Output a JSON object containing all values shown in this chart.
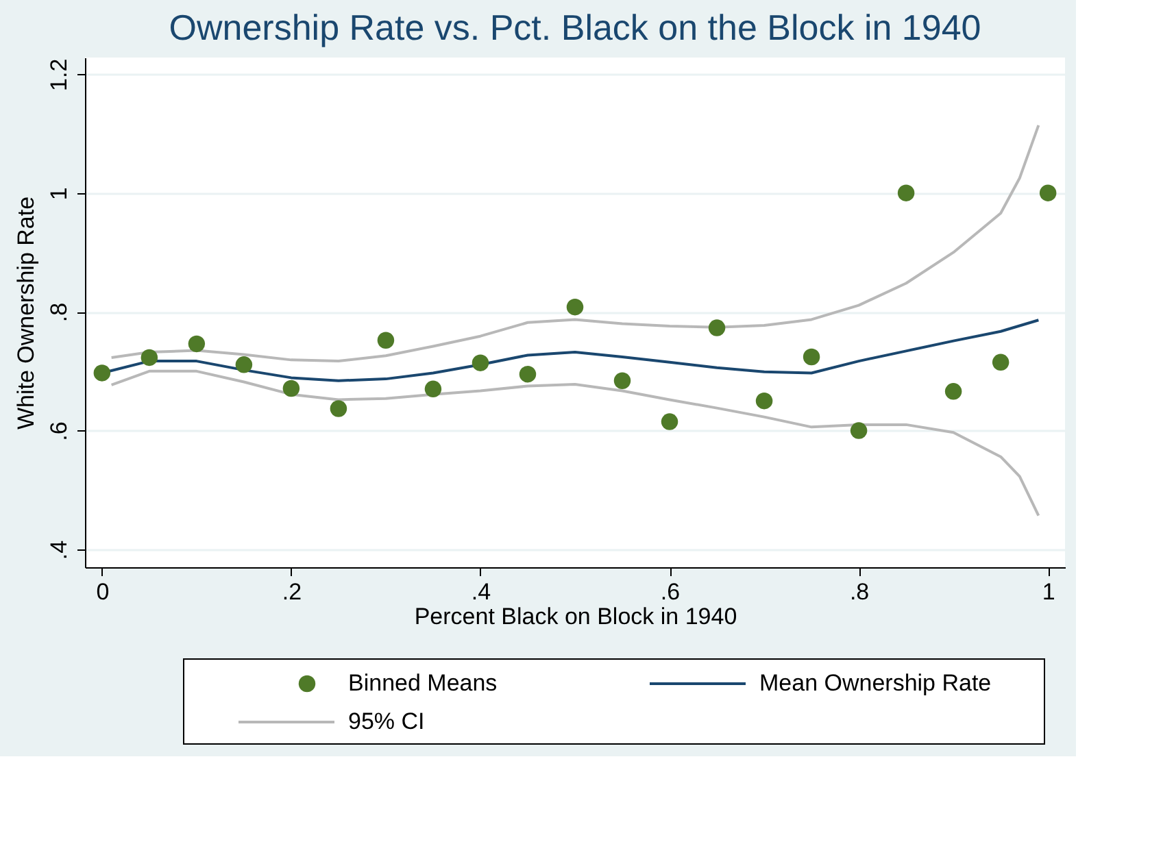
{
  "chart_data": {
    "type": "scatter",
    "title": "Ownership Rate vs. Pct. Black on the Block in 1940",
    "xlabel": "Percent Black on Block in 1940",
    "ylabel": "White Ownership Rate",
    "xlim": [
      -0.018,
      1.018
    ],
    "ylim": [
      0.37,
      1.228
    ],
    "xticks": [
      0,
      {
        "value": 0.2,
        "label": ".2"
      },
      {
        "value": 0.4,
        "label": ".4"
      },
      {
        "value": 0.6,
        "label": ".6"
      },
      {
        "value": 0.8,
        "label": ".8"
      },
      1
    ],
    "yticks": [
      {
        "value": 0.4,
        "label": ".4"
      },
      {
        "value": 0.6,
        "label": ".6"
      },
      {
        "value": 0.8,
        "label": ".8"
      },
      1,
      {
        "value": 1.2,
        "label": "1.2"
      }
    ],
    "grid": "y",
    "legend": "bottom",
    "series": [
      {
        "name": "Binned Means",
        "marker": "circle",
        "color": "#4f7a28",
        "x": [
          0,
          0.05,
          0.1,
          0.15,
          0.2,
          0.25,
          0.3,
          0.35,
          0.4,
          0.45,
          0.5,
          0.55,
          0.6,
          0.65,
          0.7,
          0.75,
          0.8,
          0.85,
          0.9,
          0.95,
          1
        ],
        "values": [
          0.697,
          0.723,
          0.746,
          0.711,
          0.671,
          0.637,
          0.752,
          0.67,
          0.714,
          0.695,
          0.808,
          0.684,
          0.615,
          0.773,
          0.65,
          0.724,
          0.6,
          1.0,
          0.666,
          0.715,
          1.0
        ]
      },
      {
        "name": "Mean Ownership Rate",
        "type": "line",
        "color": "#1a476f",
        "x": [
          0,
          0.05,
          0.1,
          0.15,
          0.2,
          0.25,
          0.3,
          0.35,
          0.4,
          0.45,
          0.5,
          0.55,
          0.6,
          0.65,
          0.7,
          0.75,
          0.8,
          0.85,
          0.9,
          0.95,
          0.99
        ],
        "values": [
          0.697,
          0.717,
          0.717,
          0.702,
          0.689,
          0.684,
          0.687,
          0.697,
          0.711,
          0.727,
          0.732,
          0.724,
          0.715,
          0.706,
          0.699,
          0.697,
          0.717,
          0.734,
          0.751,
          0.767,
          0.786
        ]
      },
      {
        "name": "95% CI",
        "type": "line",
        "color": "#b8b8b8",
        "x": [
          0.01,
          0.05,
          0.1,
          0.15,
          0.2,
          0.25,
          0.3,
          0.35,
          0.4,
          0.45,
          0.5,
          0.55,
          0.6,
          0.65,
          0.7,
          0.75,
          0.8,
          0.85,
          0.9,
          0.95,
          0.97,
          0.99
        ],
        "values": [
          0.723,
          0.732,
          0.735,
          0.728,
          0.719,
          0.717,
          0.726,
          0.742,
          0.759,
          0.782,
          0.787,
          0.78,
          0.776,
          0.774,
          0.777,
          0.787,
          0.811,
          0.848,
          0.9,
          0.966,
          1.025,
          1.114
        ]
      },
      {
        "type": "line",
        "color": "#b8b8b8",
        "x": [
          0.01,
          0.05,
          0.1,
          0.15,
          0.2,
          0.25,
          0.3,
          0.35,
          0.4,
          0.45,
          0.5,
          0.55,
          0.6,
          0.65,
          0.7,
          0.75,
          0.8,
          0.85,
          0.9,
          0.95,
          0.97,
          0.99
        ],
        "values": [
          0.677,
          0.7,
          0.7,
          0.682,
          0.661,
          0.652,
          0.654,
          0.661,
          0.667,
          0.675,
          0.678,
          0.667,
          0.652,
          0.638,
          0.623,
          0.606,
          0.61,
          0.61,
          0.597,
          0.556,
          0.523,
          0.457
        ]
      }
    ]
  }
}
